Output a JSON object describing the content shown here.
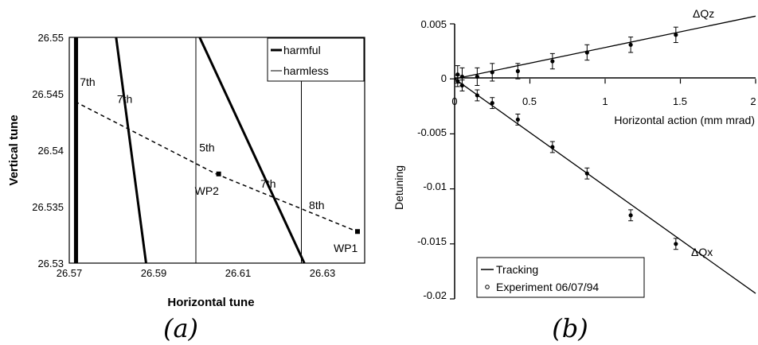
{
  "chart_data": [
    {
      "type": "line",
      "panel_label": "(a)",
      "xlabel": "Horizontal tune",
      "ylabel": "Vertical tune",
      "xlim": [
        26.57,
        26.64
      ],
      "ylim": [
        26.53,
        26.55
      ],
      "xticks": [
        "26.57",
        "26.59",
        "26.61",
        "26.63"
      ],
      "yticks": [
        "26.53",
        "26.535",
        "26.54",
        "26.545",
        "26.55"
      ],
      "legend": {
        "position": "top-right",
        "entries": [
          "harmful",
          "harmless"
        ]
      },
      "series": [
        {
          "name": "harmful",
          "style": "thick-solid",
          "lines": [
            [
              [
                26.5714,
                26.55
              ],
              [
                26.5714,
                26.53
              ]
            ],
            [
              [
                26.5718,
                26.55
              ],
              [
                26.5718,
                26.53
              ]
            ],
            [
              [
                26.5811,
                26.55
              ],
              [
                26.5882,
                26.53
              ]
            ],
            [
              [
                26.6009,
                26.55
              ],
              [
                26.6257,
                26.53
              ]
            ]
          ]
        },
        {
          "name": "harmless",
          "style": "thin-solid",
          "lines": [
            [
              [
                26.6,
                26.55
              ],
              [
                26.6,
                26.53
              ]
            ],
            [
              [
                26.625,
                26.55
              ],
              [
                26.625,
                26.53
              ]
            ]
          ]
        },
        {
          "style": "dashed",
          "lines": [
            [
              [
                26.5714,
                26.5443
              ],
              [
                26.6048,
                26.5379
              ]
            ],
            [
              [
                26.6048,
                26.5379
              ],
              [
                26.6382,
                26.5328
              ]
            ]
          ]
        }
      ],
      "points": [
        {
          "label": "WP2",
          "x": 26.6054,
          "y": 26.5379
        },
        {
          "label": "WP1",
          "x": 26.6383,
          "y": 26.5328
        }
      ],
      "annotations": [
        {
          "text": "7th",
          "x": 26.5725,
          "y": 26.5457
        },
        {
          "text": "7th",
          "x": 26.5813,
          "y": 26.5442
        },
        {
          "text": "5th",
          "x": 26.6008,
          "y": 26.5399
        },
        {
          "text": "7th",
          "x": 26.6153,
          "y": 26.5367
        },
        {
          "text": "8th",
          "x": 26.6268,
          "y": 26.5348
        }
      ]
    },
    {
      "type": "scatter",
      "panel_label": "(b)",
      "xlabel": "Horizontal action (mm mrad)",
      "ylabel": "Detuning",
      "xlim": [
        0,
        2
      ],
      "ylim": [
        -0.02,
        0.005
      ],
      "xticks": [
        "0",
        "0.5",
        "1",
        "1.5",
        "2"
      ],
      "yticks": [
        "0.005",
        "0",
        "-0.005",
        "-0.01",
        "-0.015",
        "-0.02"
      ],
      "legend": {
        "position": "bottom-left",
        "entries": [
          "Tracking",
          "Experiment 06/07/94"
        ]
      },
      "series": [
        {
          "name": "ΔQz",
          "label": "ΔQz",
          "fit": [
            [
              0,
              0.0
            ],
            [
              2,
              0.0057
            ]
          ],
          "points": [
            {
              "x": 0.02,
              "y": 0.0004,
              "err": 0.0008
            },
            {
              "x": 0.05,
              "y": 0.0002,
              "err": 0.0008
            },
            {
              "x": 0.15,
              "y": 0.0002,
              "err": 0.0008
            },
            {
              "x": 0.25,
              "y": 0.0006,
              "err": 0.0008
            },
            {
              "x": 0.42,
              "y": 0.0007,
              "err": 0.0007
            },
            {
              "x": 0.65,
              "y": 0.0016,
              "err": 0.0007
            },
            {
              "x": 0.88,
              "y": 0.0024,
              "err": 0.0007
            },
            {
              "x": 1.17,
              "y": 0.0031,
              "err": 0.0007
            },
            {
              "x": 1.47,
              "y": 0.004,
              "err": 0.0007
            }
          ]
        },
        {
          "name": "ΔQx",
          "label": "ΔQx",
          "fit": [
            [
              0,
              0.0
            ],
            [
              2,
              -0.0195
            ]
          ],
          "points": [
            {
              "x": 0.02,
              "y": -0.0002,
              "err": 0.0005
            },
            {
              "x": 0.05,
              "y": -0.0006,
              "err": 0.0005
            },
            {
              "x": 0.15,
              "y": -0.0015,
              "err": 0.0005
            },
            {
              "x": 0.25,
              "y": -0.0022,
              "err": 0.0005
            },
            {
              "x": 0.42,
              "y": -0.0037,
              "err": 0.0005
            },
            {
              "x": 0.65,
              "y": -0.0062,
              "err": 0.0005
            },
            {
              "x": 0.88,
              "y": -0.0086,
              "err": 0.0005
            },
            {
              "x": 1.17,
              "y": -0.0124,
              "err": 0.0005
            },
            {
              "x": 1.47,
              "y": -0.015,
              "err": 0.0005
            }
          ]
        }
      ]
    }
  ]
}
